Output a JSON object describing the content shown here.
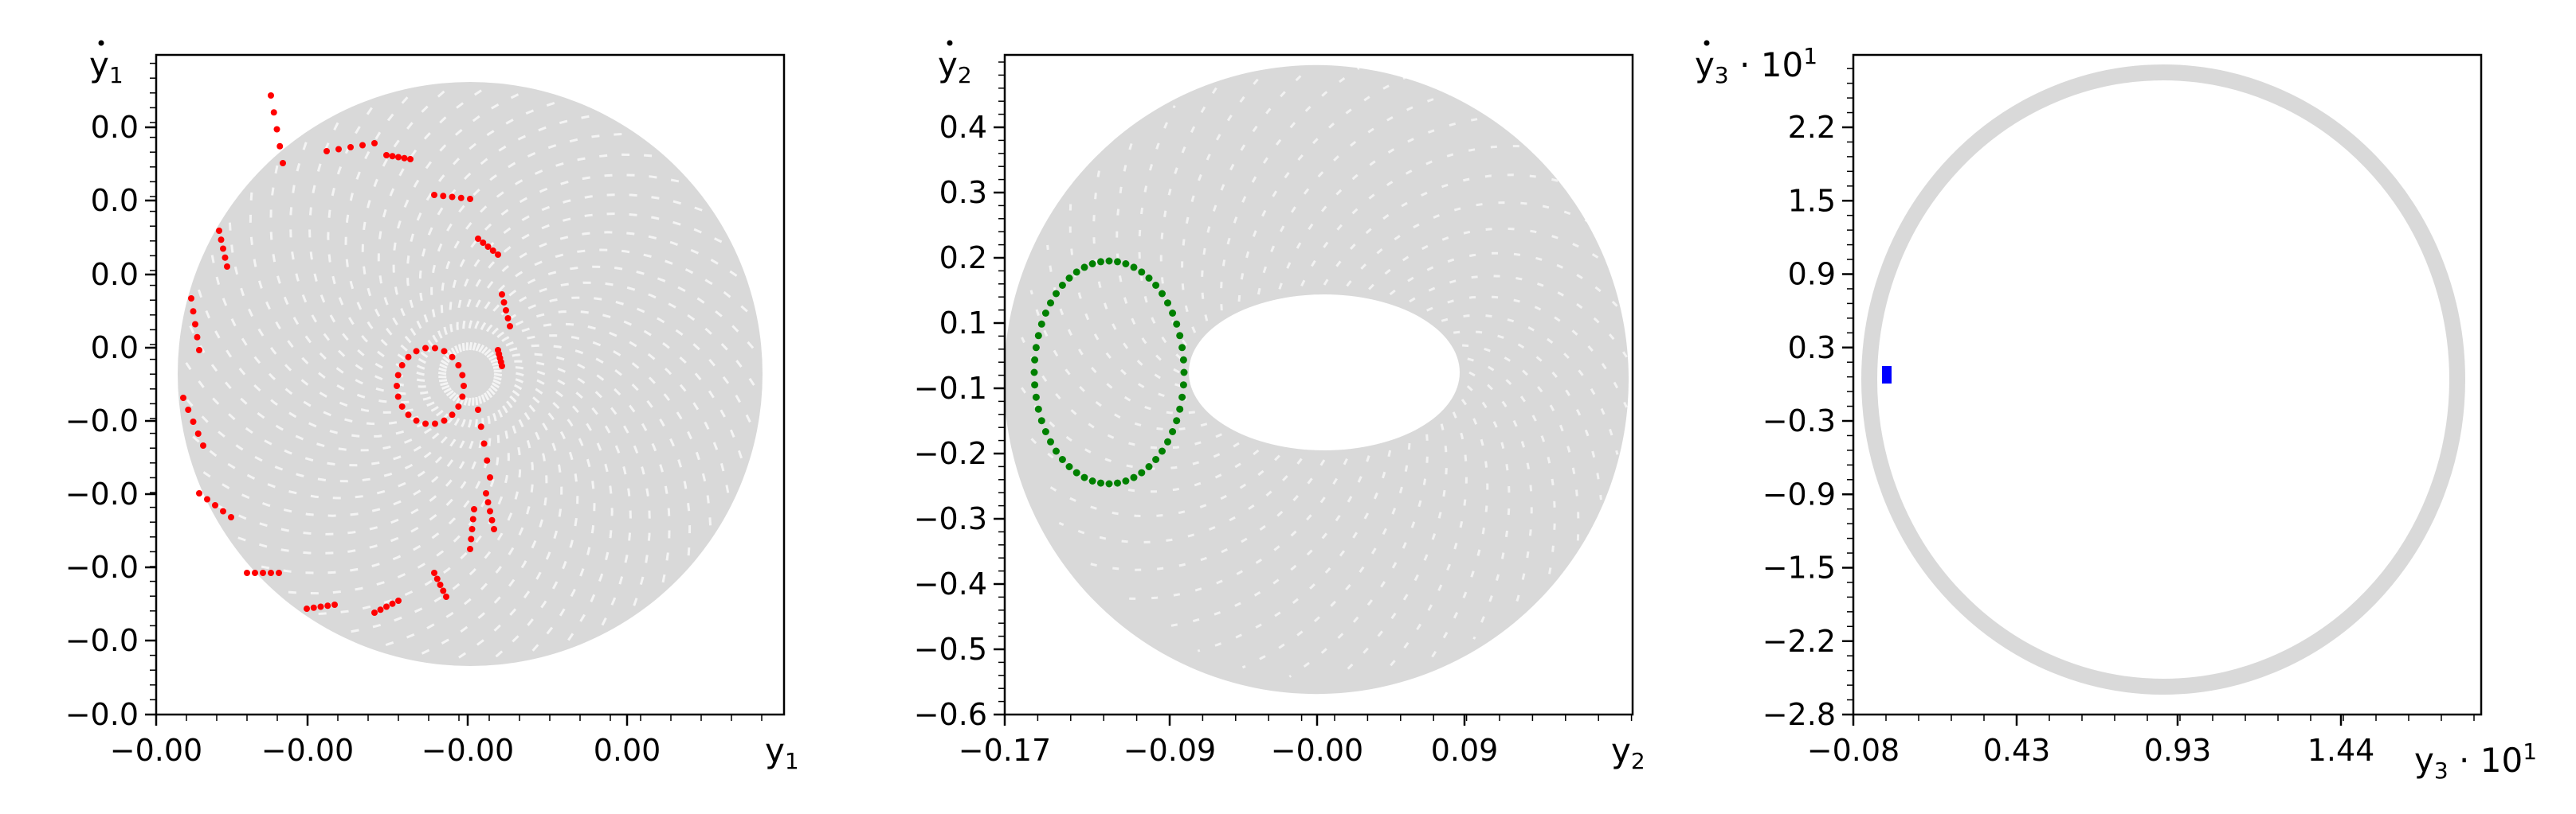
{
  "chart_data": [
    {
      "type": "scatter",
      "xlabel": "y",
      "xlabel_sub": "1",
      "ylabel": "y",
      "ylabel_sub": "1",
      "ylabel_dot": true,
      "ylabel_suffix": "",
      "xlabel_suffix": "",
      "x_ticks": [
        "−0.00",
        "−0.00",
        "−0.00",
        "0.00",
        "0.00"
      ],
      "y_ticks": [
        "−0.0",
        "−0.0",
        "−0.0",
        "−0.0",
        "−0.0",
        "0.0",
        "0.0",
        "0.0",
        "0.0"
      ],
      "series": [
        {
          "kind": "background-trajectory",
          "color": "#d9d9d9"
        },
        {
          "kind": "section-points",
          "color": "#ff0000"
        }
      ]
    },
    {
      "type": "scatter",
      "xlabel": "y",
      "xlabel_sub": "2",
      "ylabel": "y",
      "ylabel_sub": "2",
      "ylabel_dot": true,
      "ylabel_suffix": "",
      "xlabel_suffix": "",
      "x_ticks": [
        "−0.17",
        "−0.09",
        "−0.00",
        "0.09"
      ],
      "y_ticks": [
        "−0.6",
        "−0.5",
        "−0.4",
        "−0.3",
        "−0.2",
        "−0.1",
        "0.1",
        "0.2",
        "0.3",
        "0.4"
      ],
      "series": [
        {
          "kind": "background-trajectory",
          "color": "#d9d9d9"
        },
        {
          "kind": "section-points",
          "color": "#008000"
        }
      ]
    },
    {
      "type": "scatter",
      "xlabel": "y",
      "xlabel_sub": "3",
      "ylabel": "y",
      "ylabel_sub": "3",
      "ylabel_dot": true,
      "ylabel_suffix": " · 10",
      "ylabel_exp": "1",
      "xlabel_suffix": " · 10",
      "xlabel_exp": "1",
      "x_ticks": [
        "−0.08",
        "0.43",
        "0.93",
        "1.44"
      ],
      "y_ticks": [
        "−2.8",
        "−2.2",
        "−1.5",
        "−0.9",
        "−0.3",
        "0.3",
        "0.9",
        "1.5",
        "2.2"
      ],
      "series": [
        {
          "kind": "background-trajectory",
          "color": "#d9d9d9"
        },
        {
          "kind": "section-points",
          "color": "#0000ff"
        }
      ]
    }
  ]
}
